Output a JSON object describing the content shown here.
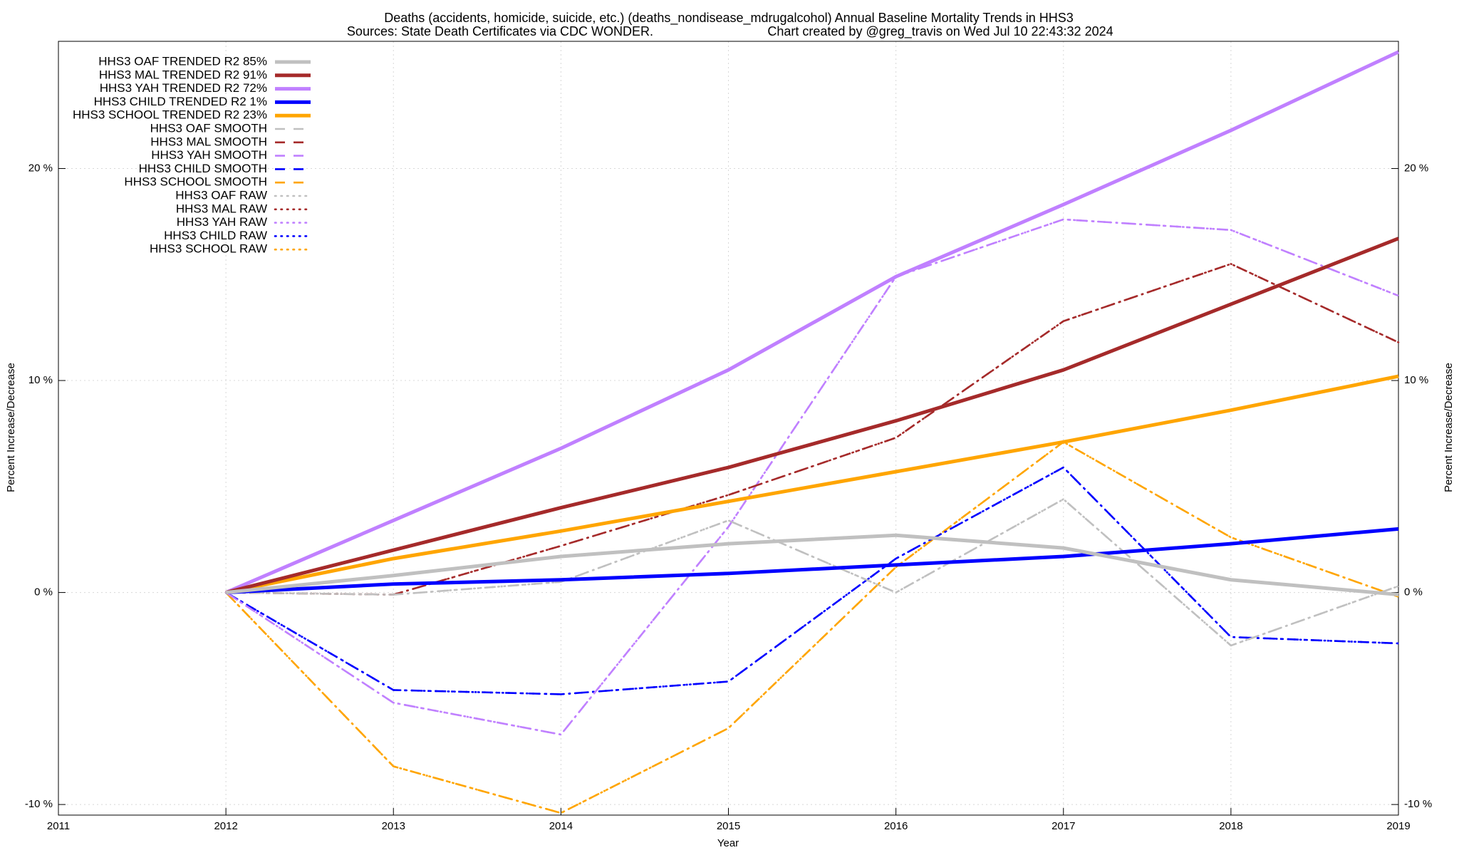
{
  "chart_data": {
    "type": "line",
    "title": "Deaths (accidents, homicide, suicide, etc.) (deaths_nondisease_mdrugalcohol)  Annual Baseline Mortality Trends in HHS3",
    "subtitle": "Sources: State Death Certificates via CDC WONDER.",
    "credit": "Chart created by @greg_travis on Wed Jul 10 22:43:32 2024",
    "xlabel": "Year",
    "ylabel": "Percent Increase/Decrease",
    "y2label": "Percent Increase/Decrease",
    "x": [
      2012,
      2013,
      2014,
      2015,
      2016,
      2017,
      2018,
      2019
    ],
    "xlim": [
      2011,
      2019
    ],
    "xticks": [
      2011,
      2012,
      2013,
      2014,
      2015,
      2016,
      2017,
      2018,
      2019
    ],
    "ylim": [
      -10.5,
      26
    ],
    "yticks": [
      {
        "value": -10,
        "label": "-10 %"
      },
      {
        "value": 0,
        "label": "0 %"
      },
      {
        "value": 10,
        "label": "10 %"
      },
      {
        "value": 20,
        "label": "20 %"
      }
    ],
    "y2lim": [
      -10.5,
      26
    ],
    "y2ticks": [
      {
        "value": -10,
        "label": "-10 %"
      },
      {
        "value": 0,
        "label": "0 %"
      },
      {
        "value": 10,
        "label": "10 %"
      },
      {
        "value": 20,
        "label": "20 %"
      }
    ],
    "grid": true,
    "legend": "top-left",
    "series": [
      {
        "name": "HHS3 OAF TRENDED R2  85%",
        "color": "#c0c0c0",
        "dash": "solid",
        "values": [
          0,
          0.8,
          1.7,
          2.3,
          2.7,
          2.1,
          0.6,
          -0.1
        ]
      },
      {
        "name": "HHS3 MAL TRENDED R2  91%",
        "color": "#a52a2a",
        "dash": "solid",
        "values": [
          0,
          2.0,
          4.0,
          5.9,
          8.1,
          10.5,
          13.6,
          16.7
        ]
      },
      {
        "name": "HHS3 YAH TRENDED R2  72%",
        "color": "#c080ff",
        "dash": "solid",
        "values": [
          0,
          3.4,
          6.8,
          10.5,
          14.9,
          18.3,
          21.8,
          25.5
        ]
      },
      {
        "name": "HHS3 CHILD TRENDED R2   1%",
        "color": "#0000ff",
        "dash": "solid",
        "values": [
          0,
          0.4,
          0.6,
          0.9,
          1.3,
          1.7,
          2.3,
          3.0
        ]
      },
      {
        "name": "HHS3 SCHOOL TRENDED R2  23%",
        "color": "#ffa500",
        "dash": "solid",
        "values": [
          0,
          1.6,
          2.9,
          4.3,
          5.7,
          7.1,
          8.6,
          10.2
        ]
      },
      {
        "name": "HHS3 OAF SMOOTH",
        "color": "#c0c0c0",
        "dash": "dashdot",
        "values": [
          0,
          -0.1,
          0.5,
          3.4,
          0.0,
          4.4,
          -2.5,
          0.3
        ]
      },
      {
        "name": "HHS3 MAL SMOOTH",
        "color": "#a52a2a",
        "dash": "dashdot",
        "values": [
          0,
          -0.1,
          2.2,
          4.6,
          7.3,
          12.8,
          15.5,
          11.8
        ]
      },
      {
        "name": "HHS3 YAH SMOOTH",
        "color": "#c080ff",
        "dash": "dashdot",
        "values": [
          0,
          -5.2,
          -6.7,
          3.1,
          14.9,
          17.6,
          17.1,
          14.0
        ]
      },
      {
        "name": "HHS3 CHILD SMOOTH",
        "color": "#0000ff",
        "dash": "dashdot",
        "values": [
          0,
          -4.6,
          -4.8,
          -4.2,
          1.6,
          5.9,
          -2.1,
          -2.4
        ]
      },
      {
        "name": "HHS3 SCHOOL SMOOTH",
        "color": "#ffa500",
        "dash": "dashdot",
        "values": [
          0,
          -8.2,
          -10.4,
          -6.4,
          1.2,
          7.1,
          2.6,
          -0.2
        ]
      },
      {
        "name": "HHS3 OAF RAW",
        "color": "#c0c0c0",
        "dash": "dotted",
        "values": [
          0,
          -0.1,
          0.5,
          3.4,
          0.0,
          4.4,
          -2.5,
          0.3
        ]
      },
      {
        "name": "HHS3 MAL RAW",
        "color": "#a52a2a",
        "dash": "dotted",
        "values": [
          0,
          -0.1,
          2.2,
          4.6,
          7.3,
          12.8,
          15.5,
          11.8
        ]
      },
      {
        "name": "HHS3 YAH RAW",
        "color": "#c080ff",
        "dash": "dotted",
        "values": [
          0,
          -5.2,
          -6.7,
          3.1,
          14.9,
          17.6,
          17.1,
          14.0
        ]
      },
      {
        "name": "HHS3 CHILD RAW",
        "color": "#0000ff",
        "dash": "dotted",
        "values": [
          0,
          -4.6,
          -4.8,
          -4.2,
          1.6,
          5.9,
          -2.1,
          -2.4
        ]
      },
      {
        "name": "HHS3 SCHOOL RAW",
        "color": "#ffa500",
        "dash": "dotted",
        "values": [
          0,
          -8.2,
          -10.4,
          -6.4,
          1.2,
          7.1,
          2.6,
          -0.2
        ]
      }
    ]
  }
}
